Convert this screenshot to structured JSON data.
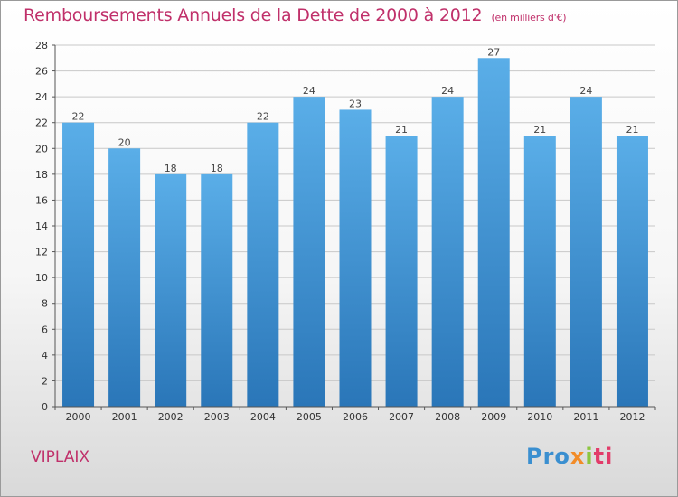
{
  "header": {
    "title": "Remboursements Annuels de la Dette de 2000 à 2012",
    "unit": "(en milliers d'€)"
  },
  "footer": {
    "commune": "VIPLAIX",
    "logo": {
      "p1": "Pro",
      "p2": "x",
      "p3": "i",
      "p4": "ti"
    }
  },
  "colors": {
    "title": "#c0306a",
    "bar_top": "#5aaee8",
    "bar_bottom": "#2a76b8",
    "grid": "#c8c8c8"
  },
  "chart_data": {
    "type": "bar",
    "title": "Remboursements Annuels de la Dette de 2000 à 2012",
    "xlabel": "",
    "ylabel": "",
    "categories": [
      "2000",
      "2001",
      "2002",
      "2003",
      "2004",
      "2005",
      "2006",
      "2007",
      "2008",
      "2009",
      "2010",
      "2011",
      "2012"
    ],
    "values": [
      22,
      20,
      18,
      18,
      22,
      24,
      23,
      21,
      24,
      27,
      21,
      24,
      21
    ],
    "ylim": [
      0,
      28
    ],
    "yticks": [
      0,
      2,
      4,
      6,
      8,
      10,
      12,
      14,
      16,
      18,
      20,
      22,
      24,
      26,
      28
    ],
    "grid": true,
    "legend": "none"
  }
}
